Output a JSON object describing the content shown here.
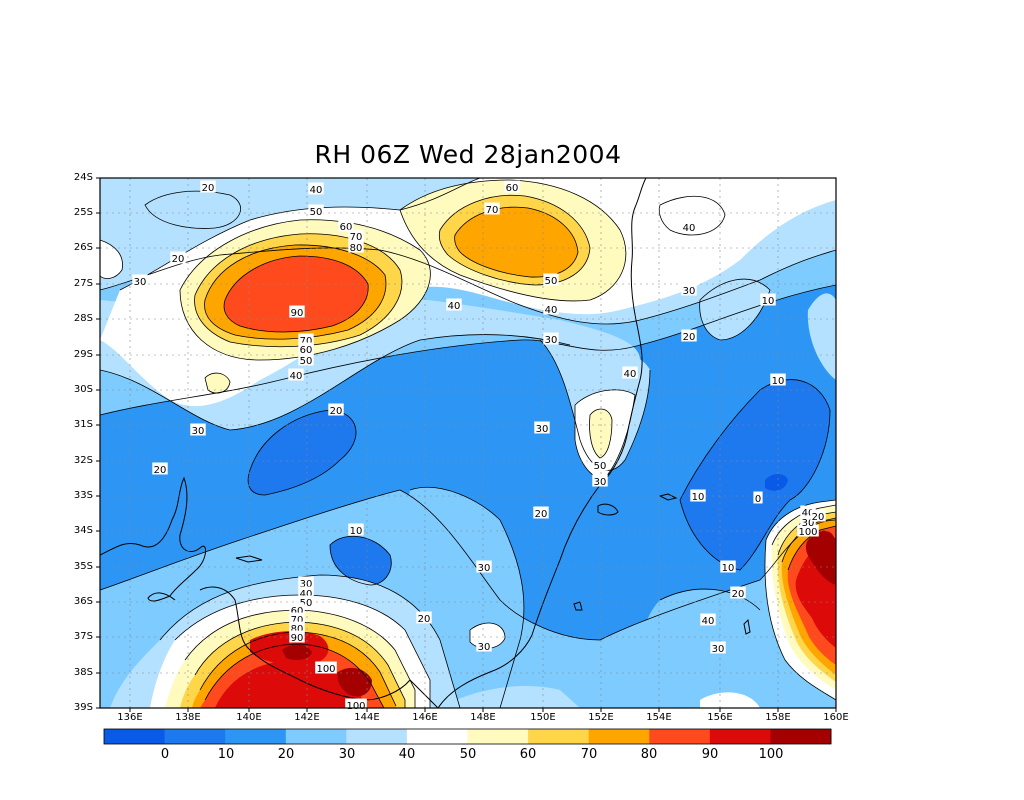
{
  "title": "RH 06Z Wed 28jan2004",
  "map": {
    "y_axis_labels": [
      "24S",
      "25S",
      "26S",
      "27S",
      "28S",
      "29S",
      "30S",
      "31S",
      "32S",
      "33S",
      "34S",
      "35S",
      "36S",
      "37S",
      "38S",
      "39S"
    ],
    "x_axis_labels": [
      "136E",
      "138E",
      "140E",
      "142E",
      "144E",
      "146E",
      "148E",
      "150E",
      "152E",
      "154E",
      "156E",
      "158E",
      "160E"
    ],
    "grid": true,
    "contour_labels": [
      "20",
      "40",
      "50",
      "60",
      "70",
      "80",
      "90",
      "70",
      "60",
      "50",
      "40",
      "30",
      "60",
      "70",
      "50",
      "40",
      "30",
      "40",
      "40",
      "30",
      "20",
      "10",
      "10",
      "20",
      "30",
      "40",
      "50",
      "30",
      "20",
      "10",
      "0",
      "10",
      "20",
      "30",
      "30",
      "40",
      "50",
      "60",
      "70",
      "80",
      "90",
      "100",
      "100",
      "20",
      "30",
      "40",
      "30",
      "10",
      "20",
      "30",
      "20",
      "100",
      "40",
      "30",
      "20"
    ]
  },
  "colorbar": {
    "labels": [
      "0",
      "10",
      "20",
      "30",
      "40",
      "50",
      "60",
      "70",
      "80",
      "90",
      "100"
    ],
    "colors": [
      "#0a5ae8",
      "#1e78ee",
      "#2d96f5",
      "#7ecbff",
      "#b4e1ff",
      "#ffffff",
      "#fffabe",
      "#ffd54a",
      "#ffa500",
      "#ff4a1e",
      "#dd0a0a",
      "#a50000"
    ]
  }
}
